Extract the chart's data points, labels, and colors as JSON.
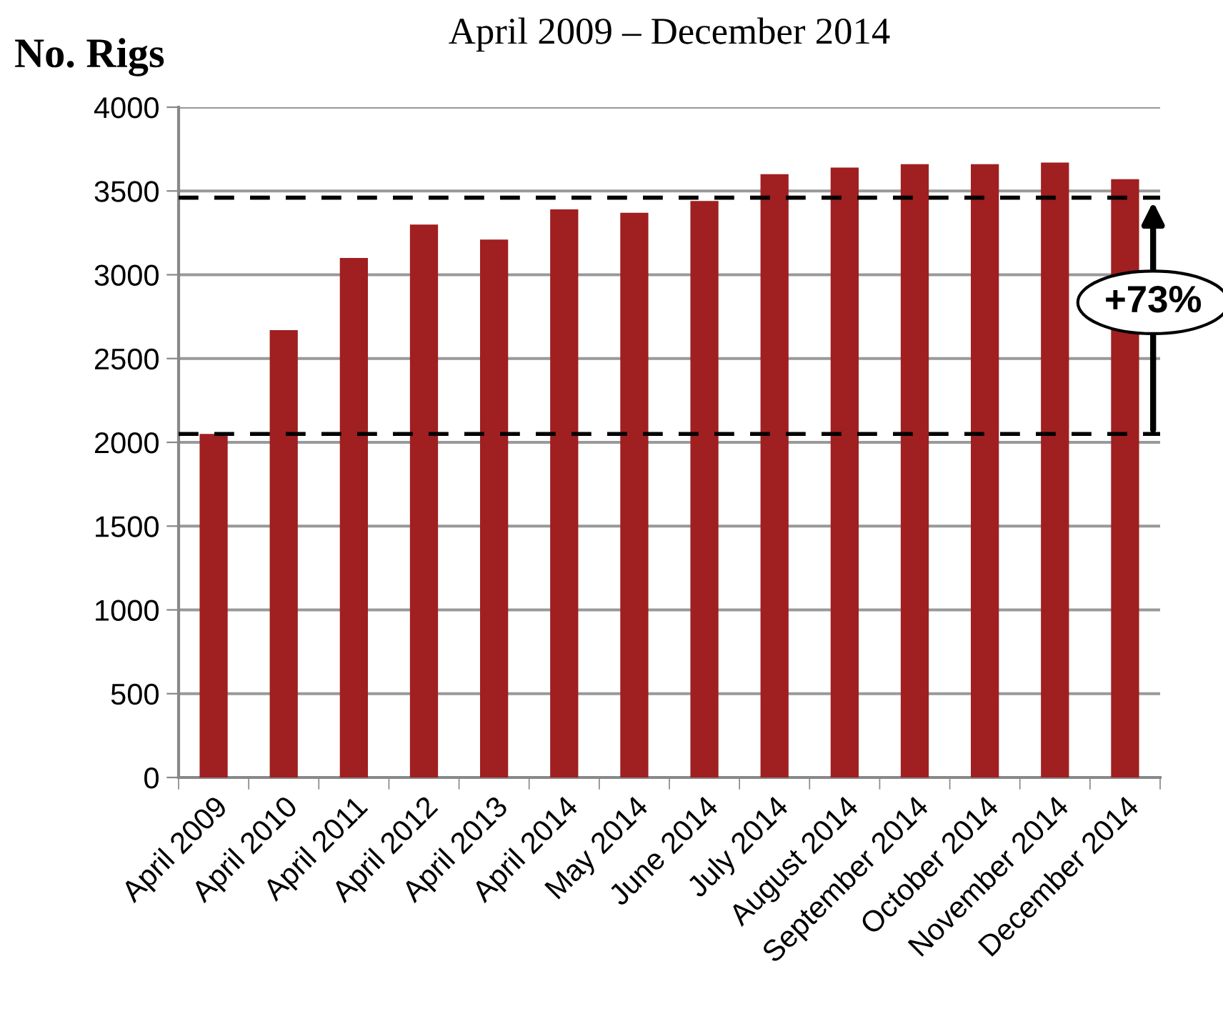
{
  "chart_data": {
    "type": "bar",
    "title": "April 2009 – December 2014",
    "ylabel": "No. Rigs",
    "categories": [
      "April 2009",
      "April 2010",
      "April 2011",
      "April 2012",
      "April 2013",
      "April 2014",
      "May 2014",
      "June 2014",
      "July 2014",
      "August 2014",
      "September 2014",
      "October 2014",
      "November 2014",
      "December 2014"
    ],
    "values": [
      2050,
      2670,
      3100,
      3300,
      3210,
      3390,
      3370,
      3440,
      3600,
      3640,
      3660,
      3660,
      3670,
      3570
    ],
    "color": "#a01f20",
    "ylim": [
      0,
      4000
    ],
    "yticks": [
      0,
      500,
      1000,
      1500,
      2000,
      2500,
      3000,
      3500,
      4000
    ],
    "grid": "y",
    "ref_lines": [
      {
        "axis": "y",
        "value": 2050,
        "color": "#000000",
        "line_style": "dashed"
      },
      {
        "axis": "y",
        "value": 3460,
        "color": "#000000",
        "line_style": "dashed"
      }
    ],
    "annotations": [
      "+73%"
    ]
  }
}
